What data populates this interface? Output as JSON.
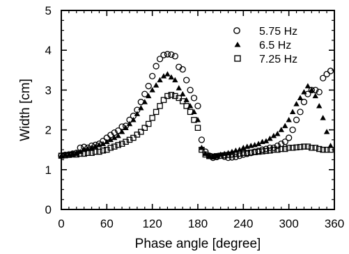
{
  "chart_data": {
    "type": "scatter",
    "title": "",
    "xlabel": "Phase angle [degree]",
    "ylabel": "Width [cm]",
    "xlim": [
      0,
      360
    ],
    "ylim": [
      0,
      5
    ],
    "x_ticks": [
      "0",
      "60",
      "120",
      "180",
      "240",
      "300",
      "360"
    ],
    "y_ticks": [
      "0",
      "1",
      "2",
      "3",
      "4",
      "5"
    ],
    "x_tick_values": [
      0,
      60,
      120,
      180,
      240,
      300,
      360
    ],
    "y_tick_values": [
      0,
      1,
      2,
      3,
      4,
      5
    ],
    "grid": false,
    "legend_position": "top-right",
    "series": [
      {
        "name": "5.75 Hz",
        "marker": "circle",
        "points": [
          [
            0,
            1.35
          ],
          [
            5,
            1.37
          ],
          [
            10,
            1.38
          ],
          [
            15,
            1.4
          ],
          [
            20,
            1.42
          ],
          [
            25,
            1.55
          ],
          [
            30,
            1.57
          ],
          [
            35,
            1.55
          ],
          [
            40,
            1.6
          ],
          [
            45,
            1.62
          ],
          [
            50,
            1.65
          ],
          [
            55,
            1.72
          ],
          [
            60,
            1.8
          ],
          [
            65,
            1.87
          ],
          [
            70,
            1.93
          ],
          [
            75,
            1.98
          ],
          [
            80,
            2.08
          ],
          [
            85,
            2.1
          ],
          [
            90,
            2.25
          ],
          [
            95,
            2.35
          ],
          [
            100,
            2.5
          ],
          [
            105,
            2.7
          ],
          [
            110,
            2.9
          ],
          [
            115,
            3.1
          ],
          [
            120,
            3.35
          ],
          [
            125,
            3.6
          ],
          [
            130,
            3.78
          ],
          [
            135,
            3.88
          ],
          [
            140,
            3.9
          ],
          [
            145,
            3.89
          ],
          [
            150,
            3.85
          ],
          [
            155,
            3.58
          ],
          [
            160,
            3.52
          ],
          [
            165,
            3.25
          ],
          [
            170,
            3.0
          ],
          [
            175,
            2.8
          ],
          [
            180,
            2.6
          ],
          [
            185,
            1.75
          ],
          [
            190,
            1.45
          ],
          [
            195,
            1.35
          ],
          [
            200,
            1.3
          ],
          [
            205,
            1.32
          ],
          [
            210,
            1.35
          ],
          [
            215,
            1.33
          ],
          [
            220,
            1.3
          ],
          [
            225,
            1.31
          ],
          [
            230,
            1.32
          ],
          [
            235,
            1.35
          ],
          [
            240,
            1.38
          ],
          [
            245,
            1.4
          ],
          [
            250,
            1.42
          ],
          [
            255,
            1.45
          ],
          [
            260,
            1.47
          ],
          [
            265,
            1.5
          ],
          [
            270,
            1.52
          ],
          [
            275,
            1.55
          ],
          [
            280,
            1.55
          ],
          [
            285,
            1.6
          ],
          [
            290,
            1.65
          ],
          [
            295,
            1.7
          ],
          [
            300,
            1.8
          ],
          [
            305,
            2.0
          ],
          [
            310,
            2.25
          ],
          [
            315,
            2.45
          ],
          [
            320,
            2.7
          ],
          [
            325,
            2.9
          ],
          [
            330,
            3.0
          ],
          [
            335,
            3.0
          ],
          [
            340,
            2.95
          ],
          [
            345,
            3.3
          ],
          [
            350,
            3.4
          ],
          [
            355,
            3.48
          ]
        ]
      },
      {
        "name": "6.5 Hz",
        "marker": "triangle",
        "points": [
          [
            0,
            1.35
          ],
          [
            5,
            1.37
          ],
          [
            10,
            1.38
          ],
          [
            15,
            1.4
          ],
          [
            20,
            1.42
          ],
          [
            25,
            1.45
          ],
          [
            30,
            1.5
          ],
          [
            35,
            1.52
          ],
          [
            40,
            1.55
          ],
          [
            45,
            1.58
          ],
          [
            50,
            1.62
          ],
          [
            55,
            1.65
          ],
          [
            60,
            1.7
          ],
          [
            65,
            1.75
          ],
          [
            70,
            1.8
          ],
          [
            75,
            1.85
          ],
          [
            80,
            1.95
          ],
          [
            85,
            2.05
          ],
          [
            90,
            2.15
          ],
          [
            95,
            2.25
          ],
          [
            100,
            2.4
          ],
          [
            105,
            2.55
          ],
          [
            110,
            2.7
          ],
          [
            115,
            2.85
          ],
          [
            120,
            3.0
          ],
          [
            125,
            3.12
          ],
          [
            130,
            3.25
          ],
          [
            135,
            3.35
          ],
          [
            140,
            3.4
          ],
          [
            145,
            3.32
          ],
          [
            150,
            3.25
          ],
          [
            155,
            3.05
          ],
          [
            160,
            2.9
          ],
          [
            165,
            2.75
          ],
          [
            170,
            2.6
          ],
          [
            175,
            2.45
          ],
          [
            180,
            2.25
          ],
          [
            185,
            1.55
          ],
          [
            190,
            1.4
          ],
          [
            195,
            1.35
          ],
          [
            200,
            1.33
          ],
          [
            205,
            1.35
          ],
          [
            210,
            1.38
          ],
          [
            215,
            1.4
          ],
          [
            220,
            1.42
          ],
          [
            225,
            1.45
          ],
          [
            230,
            1.48
          ],
          [
            235,
            1.5
          ],
          [
            240,
            1.55
          ],
          [
            245,
            1.58
          ],
          [
            250,
            1.6
          ],
          [
            255,
            1.62
          ],
          [
            260,
            1.65
          ],
          [
            265,
            1.7
          ],
          [
            270,
            1.72
          ],
          [
            275,
            1.78
          ],
          [
            280,
            1.85
          ],
          [
            285,
            1.9
          ],
          [
            290,
            2.0
          ],
          [
            295,
            2.1
          ],
          [
            300,
            2.25
          ],
          [
            305,
            2.45
          ],
          [
            310,
            2.65
          ],
          [
            315,
            2.8
          ],
          [
            320,
            2.95
          ],
          [
            325,
            3.1
          ],
          [
            330,
            3.0
          ],
          [
            335,
            2.85
          ],
          [
            340,
            2.6
          ],
          [
            345,
            2.3
          ],
          [
            350,
            1.95
          ],
          [
            355,
            1.6
          ]
        ]
      },
      {
        "name": "7.25 Hz",
        "marker": "square",
        "points": [
          [
            0,
            1.35
          ],
          [
            5,
            1.36
          ],
          [
            10,
            1.37
          ],
          [
            15,
            1.38
          ],
          [
            20,
            1.38
          ],
          [
            25,
            1.4
          ],
          [
            30,
            1.4
          ],
          [
            35,
            1.42
          ],
          [
            40,
            1.42
          ],
          [
            45,
            1.45
          ],
          [
            50,
            1.45
          ],
          [
            55,
            1.48
          ],
          [
            60,
            1.5
          ],
          [
            65,
            1.55
          ],
          [
            70,
            1.58
          ],
          [
            75,
            1.62
          ],
          [
            80,
            1.65
          ],
          [
            85,
            1.7
          ],
          [
            90,
            1.75
          ],
          [
            95,
            1.8
          ],
          [
            100,
            1.88
          ],
          [
            105,
            1.95
          ],
          [
            110,
            2.05
          ],
          [
            115,
            2.15
          ],
          [
            120,
            2.3
          ],
          [
            125,
            2.45
          ],
          [
            130,
            2.6
          ],
          [
            135,
            2.75
          ],
          [
            140,
            2.85
          ],
          [
            145,
            2.88
          ],
          [
            150,
            2.85
          ],
          [
            155,
            2.8
          ],
          [
            160,
            2.72
          ],
          [
            165,
            2.6
          ],
          [
            170,
            2.45
          ],
          [
            175,
            2.25
          ],
          [
            180,
            2.05
          ],
          [
            185,
            1.5
          ],
          [
            190,
            1.38
          ],
          [
            195,
            1.34
          ],
          [
            200,
            1.33
          ],
          [
            205,
            1.34
          ],
          [
            210,
            1.35
          ],
          [
            215,
            1.36
          ],
          [
            220,
            1.37
          ],
          [
            225,
            1.38
          ],
          [
            230,
            1.4
          ],
          [
            235,
            1.4
          ],
          [
            240,
            1.42
          ],
          [
            245,
            1.42
          ],
          [
            250,
            1.43
          ],
          [
            255,
            1.44
          ],
          [
            260,
            1.45
          ],
          [
            265,
            1.46
          ],
          [
            270,
            1.47
          ],
          [
            275,
            1.48
          ],
          [
            280,
            1.5
          ],
          [
            285,
            1.5
          ],
          [
            290,
            1.52
          ],
          [
            295,
            1.52
          ],
          [
            300,
            1.55
          ],
          [
            305,
            1.55
          ],
          [
            310,
            1.56
          ],
          [
            315,
            1.57
          ],
          [
            320,
            1.58
          ],
          [
            325,
            1.58
          ],
          [
            330,
            1.55
          ],
          [
            335,
            1.55
          ],
          [
            340,
            1.52
          ],
          [
            345,
            1.5
          ],
          [
            350,
            1.5
          ],
          [
            355,
            1.5
          ]
        ]
      }
    ]
  }
}
